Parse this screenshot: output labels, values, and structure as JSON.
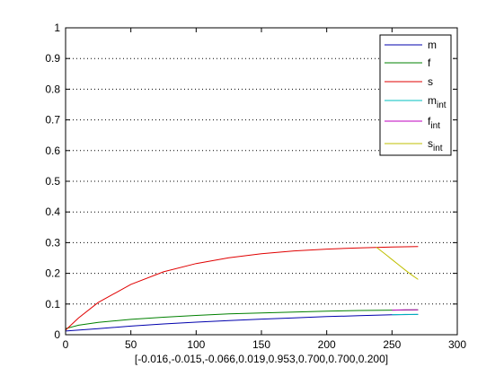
{
  "chart_data": {
    "type": "line",
    "xlabel": "[-0.016,-0.015,-0.066,0.019,0.953,0.700,0.700,0.200]",
    "xlim": [
      0,
      300
    ],
    "ylim": [
      0,
      1
    ],
    "x_ticks": [
      "0",
      "50",
      "100",
      "150",
      "200",
      "250",
      "300"
    ],
    "y_ticks": [
      "0",
      "0.1",
      "0.2",
      "0.3",
      "0.4",
      "0.5",
      "0.6",
      "0.7",
      "0.8",
      "0.9",
      "1"
    ],
    "grid": "horizontal dotted",
    "legend_position": "top-right",
    "series": [
      {
        "name": "m",
        "legend_base": "m",
        "legend_sub": "",
        "color": "#0000ad",
        "x": [
          0,
          25,
          50,
          75,
          100,
          125,
          150,
          175,
          200,
          225,
          250,
          270
        ],
        "y": [
          0.012,
          0.02,
          0.028,
          0.035,
          0.041,
          0.046,
          0.051,
          0.055,
          0.059,
          0.062,
          0.065,
          0.066
        ]
      },
      {
        "name": "f",
        "legend_base": "f",
        "legend_sub": "",
        "color": "#008000",
        "x": [
          0,
          10,
          25,
          50,
          75,
          100,
          125,
          150,
          175,
          200,
          225,
          250,
          270
        ],
        "y": [
          0.02,
          0.031,
          0.04,
          0.05,
          0.057,
          0.063,
          0.068,
          0.071,
          0.074,
          0.077,
          0.079,
          0.08,
          0.081
        ]
      },
      {
        "name": "s",
        "legend_base": "s",
        "legend_sub": "",
        "color": "#e00000",
        "x": [
          0,
          10,
          25,
          50,
          75,
          100,
          125,
          150,
          175,
          200,
          225,
          250,
          270
        ],
        "y": [
          0.015,
          0.055,
          0.105,
          0.164,
          0.205,
          0.232,
          0.251,
          0.264,
          0.273,
          0.279,
          0.283,
          0.286,
          0.287
        ]
      },
      {
        "name": "m_int",
        "legend_base": "m",
        "legend_sub": "int",
        "color": "#00bfbf",
        "x": [
          250,
          260,
          270
        ],
        "y": [
          0.065,
          0.066,
          0.066
        ]
      },
      {
        "name": "f_int",
        "legend_base": "f",
        "legend_sub": "int",
        "color": "#bf00bf",
        "x": [
          250,
          260,
          270
        ],
        "y": [
          0.08,
          0.081,
          0.081
        ]
      },
      {
        "name": "s_int",
        "legend_base": "s",
        "legend_sub": "int",
        "color": "#bfbf00",
        "x": [
          238,
          245,
          250,
          255,
          260,
          265,
          270
        ],
        "y": [
          0.285,
          0.262,
          0.245,
          0.228,
          0.211,
          0.195,
          0.18
        ]
      }
    ]
  }
}
